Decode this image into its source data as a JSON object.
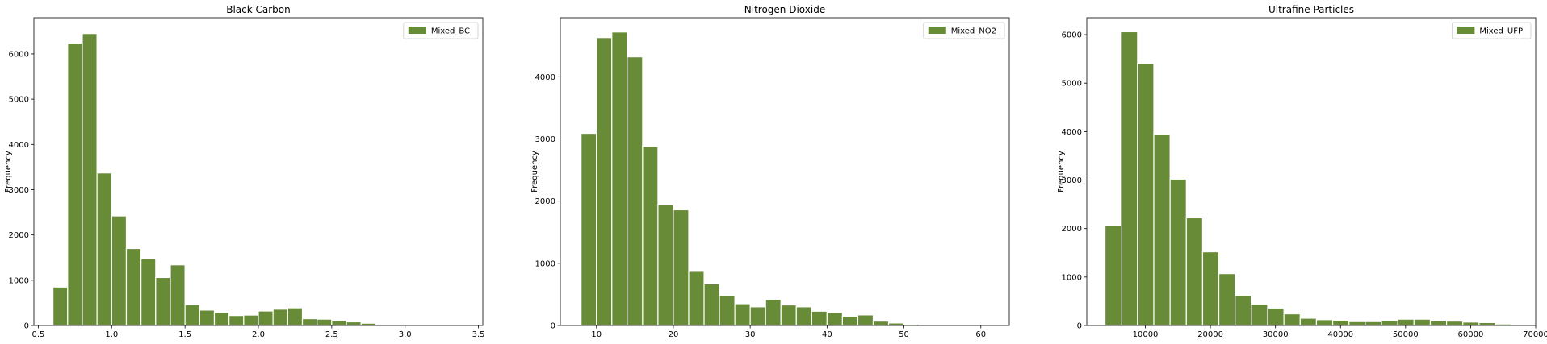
{
  "style": {
    "bar_color": "#688b38",
    "bar_edge": "#ffffff",
    "background": "#ffffff",
    "axis_color": "#000000"
  },
  "chart_data": [
    {
      "type": "bar",
      "title": "Black Carbon",
      "xlabel": "",
      "ylabel": "Frequency",
      "legend": {
        "label": "Mixed_BC",
        "position": "top-right"
      },
      "grid": false,
      "xlim": [
        0.47,
        3.53
      ],
      "ylim": [
        0,
        6800
      ],
      "xticks": [
        0.5,
        1.0,
        1.5,
        2.0,
        2.5,
        3.0,
        3.5
      ],
      "xtick_labels": [
        "0.5",
        "1.0",
        "1.5",
        "2.0",
        "2.5",
        "3.0",
        "3.5"
      ],
      "yticks": [
        0,
        1000,
        2000,
        3000,
        4000,
        5000,
        6000
      ],
      "ytick_labels": [
        "0",
        "1000",
        "2000",
        "3000",
        "4000",
        "5000",
        "6000"
      ],
      "bin_edges": [
        0.6,
        0.7,
        0.8,
        0.9,
        1.0,
        1.1,
        1.2,
        1.3,
        1.4,
        1.5,
        1.6,
        1.7,
        1.8,
        1.9,
        2.0,
        2.1,
        2.2,
        2.3,
        2.4,
        2.5,
        2.6,
        2.7,
        2.8,
        2.9,
        3.0,
        3.1,
        3.2,
        3.3,
        3.4
      ],
      "values": [
        850,
        6240,
        6450,
        3370,
        2420,
        1700,
        1470,
        1060,
        1340,
        460,
        340,
        290,
        220,
        230,
        320,
        360,
        390,
        150,
        140,
        110,
        80,
        50,
        20,
        0,
        10,
        0,
        10,
        0
      ]
    },
    {
      "type": "bar",
      "title": "Nitrogen Dioxide",
      "xlabel": "",
      "ylabel": "Frequency",
      "legend": {
        "label": "Mixed_NO2",
        "position": "top-right"
      },
      "grid": false,
      "xlim": [
        5.3,
        63.7
      ],
      "ylim": [
        0,
        4950
      ],
      "xticks": [
        10,
        20,
        30,
        40,
        50,
        60
      ],
      "xtick_labels": [
        "10",
        "20",
        "30",
        "40",
        "50",
        "60"
      ],
      "yticks": [
        0,
        1000,
        2000,
        3000,
        4000
      ],
      "ytick_labels": [
        "0",
        "1000",
        "2000",
        "3000",
        "4000"
      ],
      "bin_edges": [
        8,
        10,
        12,
        14,
        16,
        18,
        20,
        22,
        24,
        26,
        28,
        30,
        32,
        34,
        36,
        38,
        40,
        42,
        44,
        46,
        48,
        50,
        52,
        54,
        56,
        58,
        60,
        62
      ],
      "values": [
        3090,
        4630,
        4720,
        4320,
        2880,
        1940,
        1860,
        870,
        670,
        480,
        350,
        300,
        420,
        330,
        300,
        230,
        210,
        150,
        170,
        70,
        40,
        20,
        10,
        10,
        10,
        0,
        0
      ]
    },
    {
      "type": "bar",
      "title": "Ultrafine Particles",
      "xlabel": "",
      "ylabel": "Frequency",
      "legend": {
        "label": "Mixed_UFP",
        "position": "top-right"
      },
      "grid": false,
      "xlim": [
        1000,
        70000
      ],
      "ylim": [
        0,
        6350
      ],
      "xticks": [
        10000,
        20000,
        30000,
        40000,
        50000,
        60000,
        70000
      ],
      "xtick_labels": [
        "10000",
        "20000",
        "30000",
        "40000",
        "50000",
        "60000",
        "70000"
      ],
      "yticks": [
        0,
        1000,
        2000,
        3000,
        4000,
        5000,
        6000
      ],
      "ytick_labels": [
        "0",
        "1000",
        "2000",
        "3000",
        "4000",
        "5000",
        "6000"
      ],
      "bin_edges": [
        3800,
        6300,
        8800,
        11300,
        13800,
        16300,
        18800,
        21300,
        23800,
        26300,
        28800,
        31300,
        33800,
        36300,
        38800,
        41300,
        43800,
        46300,
        48800,
        51300,
        53800,
        56300,
        58800,
        61300,
        63800,
        66300,
        68800
      ],
      "values": [
        2070,
        6060,
        5400,
        3940,
        3020,
        2220,
        1520,
        1070,
        620,
        440,
        360,
        240,
        150,
        120,
        110,
        80,
        80,
        110,
        130,
        130,
        100,
        90,
        70,
        60,
        30,
        10
      ]
    }
  ]
}
